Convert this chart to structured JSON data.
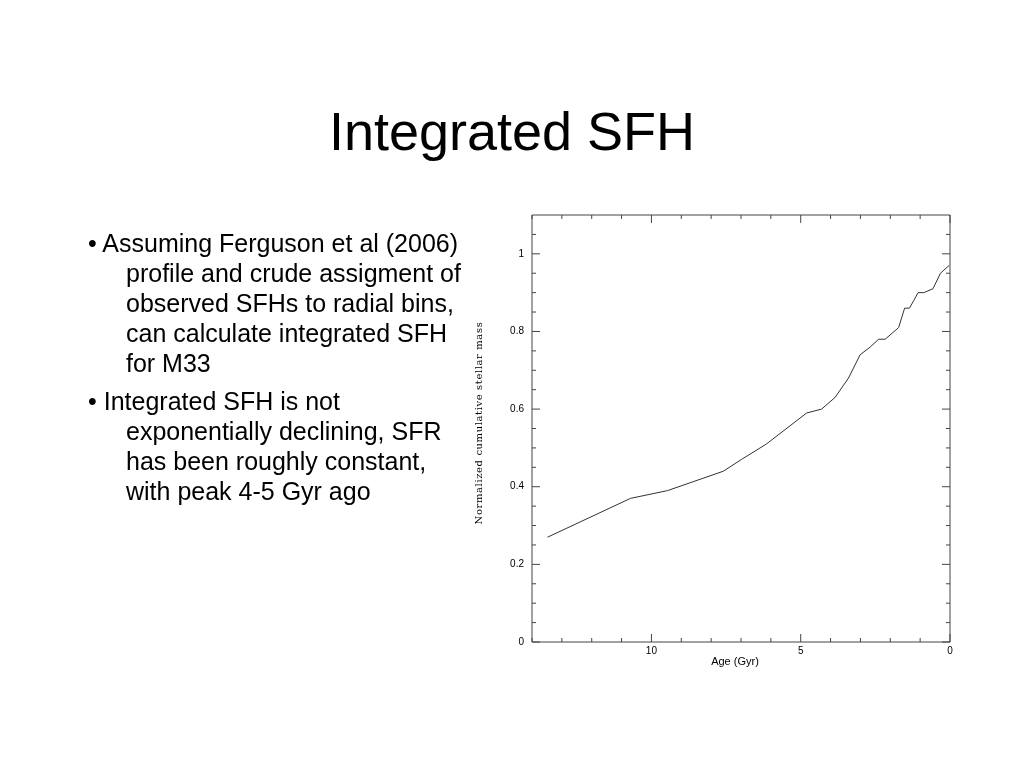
{
  "chart_data": {
    "type": "line",
    "title": "Integrated SFH",
    "xlabel": "Age (Gyr)",
    "ylabel": "Normalized cumulative stellar mass",
    "annotations": [
      "• Assuming Ferguson et al (2006) profile and crude assigment of observed SFHs to radial bins, can calculate integrated SFH for M33",
      "• Integrated SFH is not exponentially declining, SFR has been roughly constant, with peak 4-5 Gyr ago"
    ],
    "xlim": [
      14,
      0
    ],
    "ylim": [
      0,
      1.1
    ],
    "xticks": [
      {
        "value": 14,
        "label": null
      },
      {
        "value": 13,
        "label": null
      },
      {
        "value": 12,
        "label": null
      },
      {
        "value": 11,
        "label": null
      },
      10,
      {
        "value": 9,
        "label": null
      },
      {
        "value": 8,
        "label": null
      },
      {
        "value": 7,
        "label": null
      },
      {
        "value": 6,
        "label": null
      },
      5,
      {
        "value": 4,
        "label": null
      },
      {
        "value": 3,
        "label": null
      },
      {
        "value": 2,
        "label": null
      },
      {
        "value": 1,
        "label": null
      },
      0
    ],
    "yticks": [
      0,
      {
        "value": 0.05,
        "label": null
      },
      {
        "value": 0.1,
        "label": null
      },
      {
        "value": 0.15,
        "label": null
      },
      0.2,
      {
        "value": 0.25,
        "label": null
      },
      {
        "value": 0.3,
        "label": null
      },
      {
        "value": 0.35,
        "label": null
      },
      0.4,
      {
        "value": 0.45,
        "label": null
      },
      {
        "value": 0.5,
        "label": null
      },
      {
        "value": 0.55,
        "label": null
      },
      0.6,
      {
        "value": 0.65,
        "label": null
      },
      {
        "value": 0.7,
        "label": null
      },
      {
        "value": 0.75,
        "label": null
      },
      0.8,
      {
        "value": 0.85,
        "label": null
      },
      {
        "value": 0.9,
        "label": null
      },
      {
        "value": 0.95,
        "label": null
      },
      1,
      {
        "value": 1.05,
        "label": null
      }
    ],
    "grid": false,
    "legend": false,
    "marker": "none",
    "line_style": "solid",
    "series": [
      {
        "color": "#333333",
        "x": [
          13.48,
          10.7,
          9.46,
          7.59,
          6.99,
          6.15,
          4.8,
          4.3,
          3.85,
          3.4,
          3.01,
          2.67,
          2.39,
          2.17,
          1.72,
          1.52,
          1.36,
          1.21,
          1.07,
          0.88,
          0.57,
          0.32,
          0.03
        ],
        "values": [
          0.27,
          0.37,
          0.39,
          0.44,
          0.47,
          0.51,
          0.59,
          0.6,
          0.63,
          0.68,
          0.74,
          0.76,
          0.78,
          0.78,
          0.81,
          0.86,
          0.86,
          0.88,
          0.9,
          0.9,
          0.91,
          0.95,
          0.97
        ]
      }
    ]
  }
}
